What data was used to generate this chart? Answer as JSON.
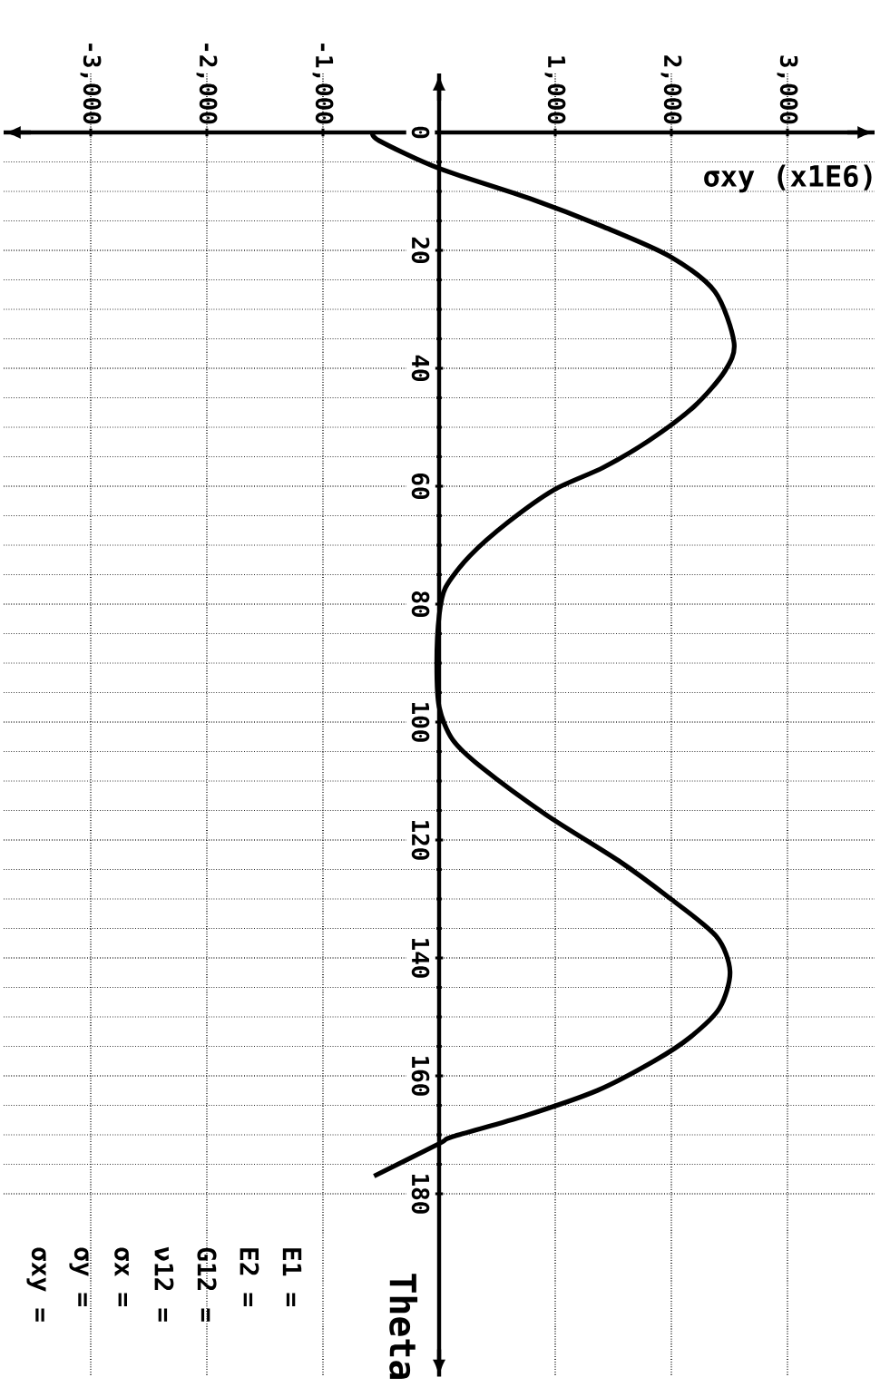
{
  "chart_data": {
    "type": "line",
    "xlabel": "σxy (x1E6)",
    "ylabel": "Theta",
    "xlim": [
      -3750,
      3750
    ],
    "ylim": [
      211,
      -10
    ],
    "xticks": [
      {
        "value": -3000,
        "label": "-3,000"
      },
      {
        "value": -2000,
        "label": "-2,000"
      },
      {
        "value": -1000,
        "label": "-1,000"
      },
      {
        "value": 1000,
        "label": "1,000"
      },
      {
        "value": 2000,
        "label": "2,000"
      },
      {
        "value": 3000,
        "label": "3,000"
      }
    ],
    "yticks": [
      0,
      20,
      40,
      60,
      80,
      100,
      120,
      140,
      160,
      180
    ],
    "grid": true,
    "line_style": "solid",
    "series": [
      {
        "color": "#000000",
        "x": [
          -570,
          -516,
          0,
          780,
          1415,
          1985,
          2375,
          2540,
          2460,
          2195,
          1805,
          1415,
          990,
          600,
          265,
          55,
          0,
          -20,
          0,
          117,
          367,
          920,
          1545,
          1975,
          2385,
          2505,
          2415,
          2165,
          1850,
          1360,
          735,
          117,
          0,
          -560
        ],
        "values": [
          0,
          1.4,
          6.1,
          11.2,
          16,
          21,
          27,
          35.7,
          40.5,
          46.5,
          52.3,
          56.8,
          60.6,
          66,
          71.8,
          77.2,
          82,
          90,
          97.4,
          103,
          107.7,
          115.7,
          123.5,
          129.7,
          136.3,
          142.3,
          148.5,
          153.4,
          157.5,
          162.5,
          166.8,
          170.3,
          171.5,
          177
        ]
      }
    ],
    "annotations": [
      "E1 =",
      "E2 =",
      "G12 =",
      "ν12 =",
      "σx =",
      "σy =",
      "σxy ="
    ]
  }
}
